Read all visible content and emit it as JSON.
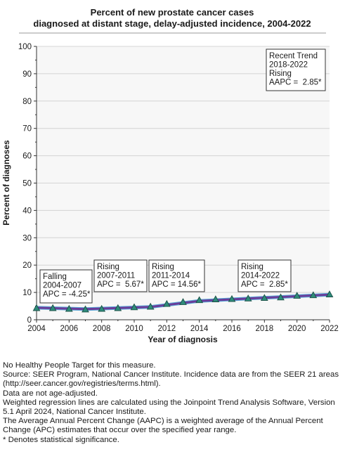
{
  "chart_data": {
    "type": "line",
    "title_lines": [
      "Percent of new prostate cancer cases",
      "diagnosed at distant stage, delay-adjusted incidence, 2004-2022"
    ],
    "xlabel": "Year of diagnosis",
    "ylabel": "Percent of diagnoses",
    "xlim": [
      2004,
      2022
    ],
    "ylim": [
      0,
      100
    ],
    "x_ticks": [
      2004,
      2006,
      2008,
      2010,
      2012,
      2014,
      2016,
      2018,
      2020,
      2022
    ],
    "y_ticks": [
      0,
      10,
      20,
      30,
      40,
      50,
      60,
      70,
      80,
      90,
      100
    ],
    "grid": true,
    "colors": {
      "plot_background": "#f7f7f7",
      "gridline": "#d4d4d4",
      "trend_line": "#6a3d9a",
      "marker_fill": "#2e8b7a",
      "marker_stroke": "#1b4f46"
    },
    "observed": {
      "marker": "triangle",
      "x": [
        2004,
        2005,
        2006,
        2007,
        2008,
        2009,
        2010,
        2011,
        2012,
        2013,
        2014,
        2015,
        2016,
        2017,
        2018,
        2019,
        2020,
        2021,
        2022
      ],
      "y": [
        4.3,
        4.3,
        4.0,
        3.8,
        4.0,
        4.3,
        4.6,
        4.8,
        5.8,
        6.5,
        7.2,
        7.5,
        7.6,
        7.8,
        8.0,
        8.2,
        8.8,
        9.0,
        9.3
      ]
    },
    "trend_line": {
      "x": [
        2004,
        2007,
        2011,
        2014,
        2022
      ],
      "y": [
        4.4,
        3.9,
        4.7,
        6.9,
        9.2
      ]
    },
    "annotations": [
      {
        "lines": [
          "Falling",
          "2004-2007",
          "APC = -4.25*"
        ]
      },
      {
        "lines": [
          "Rising",
          "2007-2011",
          "APC =  5.67*"
        ]
      },
      {
        "lines": [
          "Rising",
          "2011-2014",
          "APC = 14.56*"
        ]
      },
      {
        "lines": [
          "Rising",
          "2014-2022",
          "APC =  2.85*"
        ]
      },
      {
        "lines": [
          "Recent Trend",
          "2018-2022",
          "Rising",
          "AAPC =  2.85*"
        ]
      }
    ]
  },
  "footnotes": [
    "No Healthy People Target for this measure.",
    "Source: SEER Program, National Cancer Institute. Incidence data are from the SEER 21 areas (http://seer.cancer.gov/registries/terms.html).",
    "Data are not age-adjusted.",
    "Weighted regression lines are calculated using the Joinpoint Trend Analysis Software, Version 5.1 April 2024, National Cancer Institute.",
    "The Average Annual Percent Change (AAPC) is a weighted average of the Annual Percent Change (APC) estimates that occur over the specified year range.",
    "* Denotes statistical significance."
  ]
}
